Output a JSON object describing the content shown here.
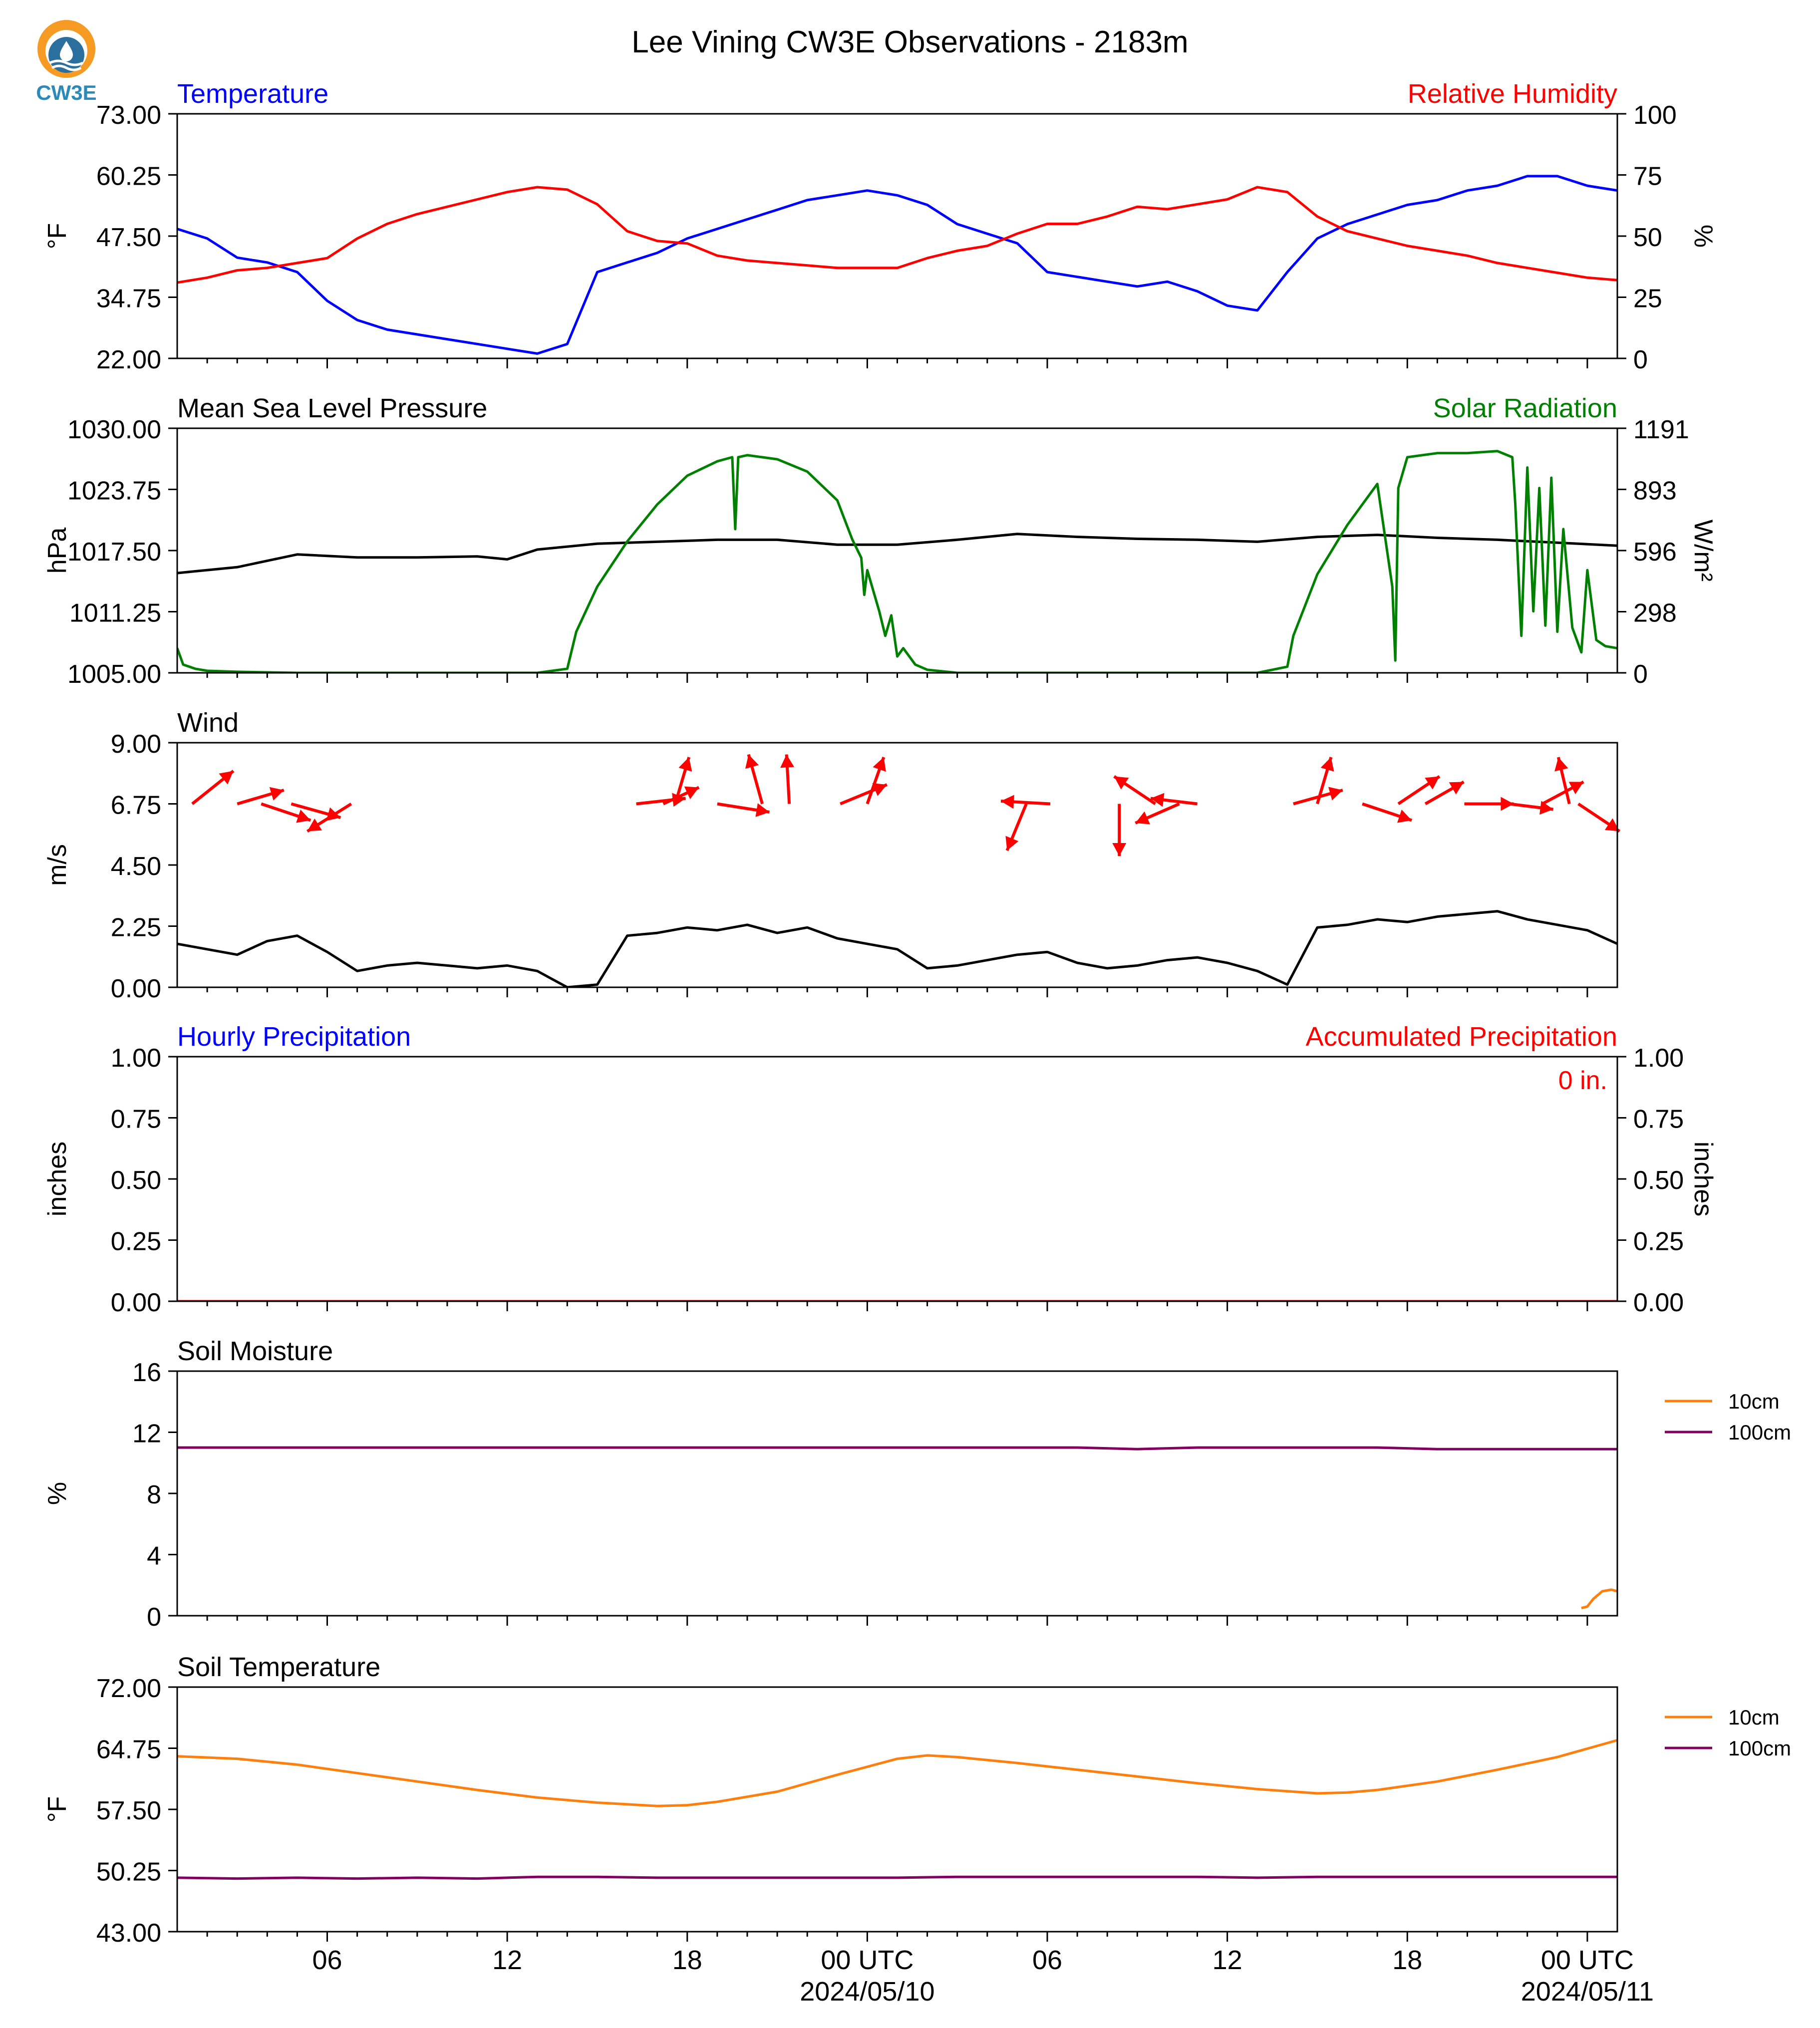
{
  "figure": {
    "title": "Lee Vining CW3E Observations - 2183m",
    "logo_text": "CW3E"
  },
  "colors": {
    "temperature": "#0000ff",
    "humidity": "#ff0000",
    "pressure": "#000000",
    "solar": "#008000",
    "wind": "#000000",
    "wind_arrows": "#ff0000",
    "precip_hourly": "#0000ff",
    "precip_accum": "#ff0000",
    "soil_10cm": "#ff7f0e",
    "soil_100cm": "#800060"
  },
  "x_axis": {
    "unit": "hours since 2024-05-09 01:00 UTC",
    "range_hours": [
      0,
      48
    ],
    "major_ticks": [
      {
        "h": 5,
        "label": "06"
      },
      {
        "h": 11,
        "label": "12"
      },
      {
        "h": 17,
        "label": "18"
      },
      {
        "h": 23,
        "label": "00 UTC",
        "sublabel": "2024/05/10"
      },
      {
        "h": 29,
        "label": "06"
      },
      {
        "h": 35,
        "label": "12"
      },
      {
        "h": 41,
        "label": "18"
      },
      {
        "h": 47,
        "label": "00 UTC",
        "sublabel": "2024/05/11"
      }
    ]
  },
  "chart_data": [
    {
      "type": "line",
      "title_left": "Temperature",
      "title_right": "Relative Humidity",
      "ylabel": "°F",
      "ylabel_right": "%",
      "ylim": [
        22,
        73
      ],
      "yticks": [
        "73.00",
        "60.25",
        "47.50",
        "34.75",
        "22.00"
      ],
      "ylim_right": [
        0,
        100
      ],
      "yticks_right": [
        "100",
        "75",
        "50",
        "25",
        "0"
      ],
      "series": [
        {
          "name": "Temperature",
          "axis": "left",
          "x": [
            0,
            1,
            2,
            3,
            4,
            5,
            6,
            7,
            8,
            9,
            10,
            11,
            12,
            13,
            14,
            15,
            16,
            17,
            18,
            19,
            20,
            21,
            22,
            23,
            24,
            25,
            26,
            27,
            28,
            29,
            30,
            31,
            32,
            33,
            34,
            35,
            36,
            37,
            38,
            39,
            40,
            41,
            42,
            43,
            44,
            45,
            46,
            47,
            48
          ],
          "y": [
            49,
            47,
            43,
            42,
            40,
            34,
            30,
            28,
            27,
            26,
            25,
            24,
            23,
            25,
            40,
            42,
            44,
            47,
            49,
            51,
            53,
            55,
            56,
            57,
            56,
            54,
            50,
            48,
            46,
            40,
            39,
            38,
            37,
            38,
            36,
            33,
            32,
            40,
            47,
            50,
            52,
            54,
            55,
            57,
            58,
            60,
            60,
            58,
            57
          ]
        },
        {
          "name": "Relative Humidity",
          "axis": "right",
          "x": [
            0,
            1,
            2,
            3,
            4,
            5,
            6,
            7,
            8,
            9,
            10,
            11,
            12,
            13,
            14,
            15,
            16,
            17,
            18,
            19,
            20,
            21,
            22,
            23,
            24,
            25,
            26,
            27,
            28,
            29,
            30,
            31,
            32,
            33,
            34,
            35,
            36,
            37,
            38,
            39,
            40,
            41,
            42,
            43,
            44,
            45,
            46,
            47,
            48
          ],
          "y": [
            31,
            33,
            36,
            37,
            39,
            41,
            49,
            55,
            59,
            62,
            65,
            68,
            70,
            69,
            63,
            52,
            48,
            47,
            42,
            40,
            39,
            38,
            37,
            37,
            37,
            41,
            44,
            46,
            51,
            55,
            55,
            58,
            62,
            61,
            63,
            65,
            70,
            68,
            58,
            52,
            49,
            46,
            44,
            42,
            39,
            37,
            35,
            33,
            32
          ]
        }
      ]
    },
    {
      "type": "line",
      "title_left": "Mean Sea Level Pressure",
      "title_right": "Solar Radiation",
      "ylabel": "hPa",
      "ylabel_right": "W/m²",
      "ylim": [
        1005,
        1030
      ],
      "yticks": [
        "1030.00",
        "1023.75",
        "1017.50",
        "1011.25",
        "1005.00"
      ],
      "ylim_right": [
        0,
        1191
      ],
      "yticks_right": [
        "1191",
        "893",
        "596",
        "298",
        "0"
      ],
      "series": [
        {
          "name": "Mean Sea Level Pressure",
          "axis": "left",
          "x": [
            0,
            2,
            4,
            6,
            8,
            10,
            11,
            12,
            14,
            16,
            18,
            20,
            22,
            24,
            26,
            28,
            30,
            32,
            34,
            36,
            38,
            40,
            42,
            44,
            46,
            48
          ],
          "y": [
            1015.2,
            1015.8,
            1017.1,
            1016.8,
            1016.8,
            1016.9,
            1016.6,
            1017.6,
            1018.2,
            1018.4,
            1018.6,
            1018.6,
            1018.1,
            1018.1,
            1018.6,
            1019.2,
            1018.9,
            1018.7,
            1018.6,
            1018.4,
            1018.9,
            1019.1,
            1018.8,
            1018.6,
            1018.3,
            1018.0
          ]
        },
        {
          "name": "Solar Radiation",
          "axis": "right",
          "x": [
            0,
            0.2,
            0.6,
            1,
            2,
            4,
            6,
            8,
            10,
            12,
            13,
            13.3,
            14,
            15,
            16,
            17,
            18,
            18.5,
            18.6,
            18.7,
            19,
            20,
            21,
            22,
            22.5,
            22.8,
            22.9,
            23,
            23.4,
            23.6,
            23.8,
            24,
            24.2,
            24.6,
            25,
            26,
            28,
            30,
            32,
            34,
            36,
            37,
            37.2,
            38,
            39,
            40,
            40.5,
            40.6,
            40.7,
            41,
            42,
            43,
            44,
            44.5,
            44.6,
            44.8,
            45,
            45.2,
            45.4,
            45.6,
            45.8,
            46,
            46.2,
            46.5,
            46.8,
            47,
            47.3,
            47.6,
            48
          ],
          "y": [
            120,
            40,
            20,
            10,
            5,
            0,
            0,
            0,
            0,
            0,
            20,
            200,
            420,
            640,
            820,
            960,
            1030,
            1050,
            700,
            1050,
            1060,
            1040,
            980,
            840,
            650,
            560,
            380,
            500,
            300,
            180,
            280,
            80,
            120,
            40,
            15,
            0,
            0,
            0,
            0,
            0,
            0,
            30,
            180,
            480,
            720,
            920,
            420,
            60,
            900,
            1050,
            1070,
            1070,
            1080,
            1050,
            820,
            180,
            1000,
            300,
            900,
            230,
            950,
            200,
            700,
            220,
            100,
            500,
            160,
            130,
            120
          ]
        }
      ]
    },
    {
      "type": "line",
      "title_left": "Wind",
      "ylabel": "m/s",
      "ylim": [
        0,
        9
      ],
      "yticks": [
        "9.00",
        "6.75",
        "4.50",
        "2.25",
        "0.00"
      ],
      "series": [
        {
          "name": "Wind",
          "axis": "left",
          "x": [
            0,
            1,
            2,
            3,
            4,
            5,
            6,
            7,
            8,
            9,
            10,
            11,
            12,
            12.5,
            13,
            14,
            15,
            16,
            17,
            18,
            19,
            20,
            21,
            22,
            23,
            24,
            25,
            26,
            27,
            28,
            29,
            30,
            31,
            32,
            33,
            34,
            35,
            36,
            37,
            38,
            39,
            40,
            41,
            42,
            43,
            44,
            45,
            46,
            47,
            48
          ],
          "y": [
            1.6,
            1.4,
            1.2,
            1.7,
            1.9,
            1.3,
            0.6,
            0.8,
            0.9,
            0.8,
            0.7,
            0.8,
            0.6,
            0.3,
            0.0,
            0.1,
            1.9,
            2.0,
            2.2,
            2.1,
            2.3,
            2.0,
            2.2,
            1.8,
            1.6,
            1.4,
            0.7,
            0.8,
            1.0,
            1.2,
            1.3,
            0.9,
            0.7,
            0.8,
            1.0,
            1.1,
            0.9,
            0.6,
            0.1,
            2.2,
            2.3,
            2.5,
            2.4,
            2.6,
            2.7,
            2.8,
            2.5,
            2.3,
            2.1,
            1.6
          ]
        }
      ],
      "arrows_row_y": 6.75,
      "arrows": [
        {
          "x": 0.5,
          "dx": 1.5,
          "dy": 1.2
        },
        {
          "x": 2.0,
          "dx": 1.7,
          "dy": 0.5
        },
        {
          "x": 2.8,
          "dx": 1.8,
          "dy": -0.6
        },
        {
          "x": 3.8,
          "dx": 1.8,
          "dy": -0.5
        },
        {
          "x": 5.8,
          "dx": -1.6,
          "dy": -1.0
        },
        {
          "x": 15.3,
          "dx": 1.8,
          "dy": 0.2
        },
        {
          "x": 16.2,
          "dx": 1.3,
          "dy": 0.6
        },
        {
          "x": 16.6,
          "dx": 0.5,
          "dy": 1.7
        },
        {
          "x": 18.0,
          "dx": 1.9,
          "dy": -0.3
        },
        {
          "x": 19.5,
          "dx": -0.5,
          "dy": 1.8
        },
        {
          "x": 20.4,
          "dx": -0.1,
          "dy": 1.8
        },
        {
          "x": 22.1,
          "dx": 1.7,
          "dy": 0.7
        },
        {
          "x": 23.0,
          "dx": 0.6,
          "dy": 1.7
        },
        {
          "x": 29.1,
          "dx": -1.8,
          "dy": 0.1
        },
        {
          "x": 28.3,
          "dx": -0.7,
          "dy": -1.7
        },
        {
          "x": 31.4,
          "dx": 0.0,
          "dy": -1.9
        },
        {
          "x": 32.6,
          "dx": -1.5,
          "dy": 1.0
        },
        {
          "x": 34.0,
          "dx": -1.7,
          "dy": 0.2
        },
        {
          "x": 33.4,
          "dx": -1.6,
          "dy": -0.7
        },
        {
          "x": 37.2,
          "dx": 1.8,
          "dy": 0.5
        },
        {
          "x": 38.0,
          "dx": 0.5,
          "dy": 1.7
        },
        {
          "x": 39.5,
          "dx": 1.8,
          "dy": -0.6
        },
        {
          "x": 40.7,
          "dx": 1.5,
          "dy": 1.0
        },
        {
          "x": 41.6,
          "dx": 1.4,
          "dy": 0.8
        },
        {
          "x": 42.9,
          "dx": 1.8,
          "dy": 0.0
        },
        {
          "x": 44.4,
          "dx": 1.6,
          "dy": -0.2
        },
        {
          "x": 45.5,
          "dx": 1.5,
          "dy": 0.8
        },
        {
          "x": 46.4,
          "dx": -0.4,
          "dy": 1.7
        },
        {
          "x": 46.7,
          "dx": 1.5,
          "dy": -1.0
        }
      ]
    },
    {
      "type": "line",
      "title_left": "Hourly Precipitation",
      "title_right": "Accumulated Precipitation",
      "ylabel": "inches",
      "ylabel_right": "inches",
      "ylim": [
        0,
        1
      ],
      "yticks": [
        "1.00",
        "0.75",
        "0.50",
        "0.25",
        "0.00"
      ],
      "ylim_right": [
        0,
        1
      ],
      "yticks_right": [
        "1.00",
        "0.75",
        "0.50",
        "0.25",
        "0.00"
      ],
      "annotation": "0 in.",
      "series": [
        {
          "name": "Hourly Precipitation",
          "axis": "left",
          "x": [
            0,
            48
          ],
          "y": [
            0,
            0
          ]
        },
        {
          "name": "Accumulated Precipitation",
          "axis": "right",
          "x": [
            0,
            48
          ],
          "y": [
            0,
            0
          ]
        }
      ]
    },
    {
      "type": "line",
      "title_left": "Soil Moisture",
      "ylabel": "%",
      "ylim": [
        0,
        16
      ],
      "yticks": [
        "16",
        "12",
        "8",
        "4",
        "0"
      ],
      "series": [
        {
          "name": "10cm",
          "axis": "left",
          "x": [
            46.8,
            47.0,
            47.2,
            47.5,
            47.8,
            48.0
          ],
          "y": [
            0.5,
            0.6,
            1.1,
            1.6,
            1.7,
            1.6
          ]
        },
        {
          "name": "100cm",
          "axis": "left",
          "x": [
            0,
            2,
            4,
            6,
            8,
            10,
            12,
            14,
            16,
            18,
            20,
            22,
            24,
            26,
            28,
            30,
            32,
            34,
            36,
            38,
            40,
            42,
            44,
            46,
            48
          ],
          "y": [
            11.0,
            11.0,
            11.0,
            11.0,
            11.0,
            11.0,
            11.0,
            11.0,
            11.0,
            11.0,
            11.0,
            11.0,
            11.0,
            11.0,
            11.0,
            11.0,
            10.9,
            11.0,
            11.0,
            11.0,
            11.0,
            10.9,
            10.9,
            10.9,
            10.9
          ]
        }
      ],
      "legend": [
        "10cm",
        "100cm"
      ]
    },
    {
      "type": "line",
      "title_left": "Soil Temperature",
      "ylabel": "°F",
      "ylim": [
        43,
        72
      ],
      "yticks": [
        "72.00",
        "64.75",
        "57.50",
        "50.25",
        "43.00"
      ],
      "series": [
        {
          "name": "10cm",
          "axis": "left",
          "x": [
            0,
            2,
            4,
            6,
            8,
            10,
            12,
            14,
            16,
            17,
            18,
            20,
            22,
            24,
            25,
            26,
            28,
            30,
            32,
            34,
            36,
            38,
            39,
            40,
            42,
            44,
            46,
            48
          ],
          "y": [
            63.8,
            63.5,
            62.8,
            61.8,
            60.8,
            59.8,
            58.9,
            58.3,
            57.9,
            58.0,
            58.4,
            59.6,
            61.6,
            63.5,
            63.9,
            63.7,
            63.0,
            62.2,
            61.4,
            60.6,
            59.9,
            59.4,
            59.5,
            59.8,
            60.8,
            62.2,
            63.7,
            65.7
          ]
        },
        {
          "name": "100cm",
          "axis": "left",
          "x": [
            0,
            2,
            4,
            6,
            8,
            10,
            12,
            14,
            16,
            18,
            20,
            22,
            24,
            26,
            28,
            30,
            32,
            34,
            36,
            38,
            40,
            42,
            44,
            46,
            48
          ],
          "y": [
            49.4,
            49.3,
            49.4,
            49.3,
            49.4,
            49.3,
            49.5,
            49.5,
            49.4,
            49.4,
            49.4,
            49.4,
            49.4,
            49.5,
            49.5,
            49.5,
            49.5,
            49.5,
            49.4,
            49.5,
            49.5,
            49.5,
            49.5,
            49.5,
            49.5
          ]
        }
      ],
      "legend": [
        "10cm",
        "100cm"
      ]
    }
  ]
}
